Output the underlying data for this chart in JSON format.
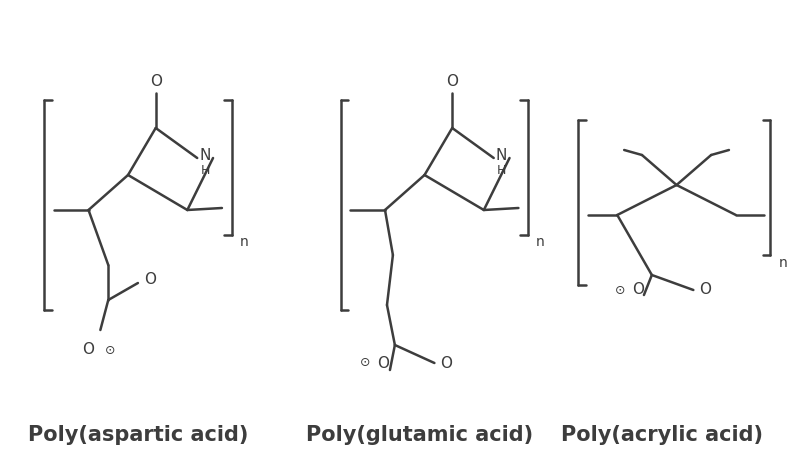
{
  "background_color": "#ffffff",
  "label1": "Poly(aspartic acid)",
  "label2": "Poly(glutamic acid)",
  "label3": "Poly(acrylic acid)",
  "label_fontsize": 15,
  "label_fontweight": "bold",
  "figsize": [
    8.08,
    4.76
  ],
  "dpi": 100,
  "line_color": "#3d3d3d",
  "line_width": 1.8
}
